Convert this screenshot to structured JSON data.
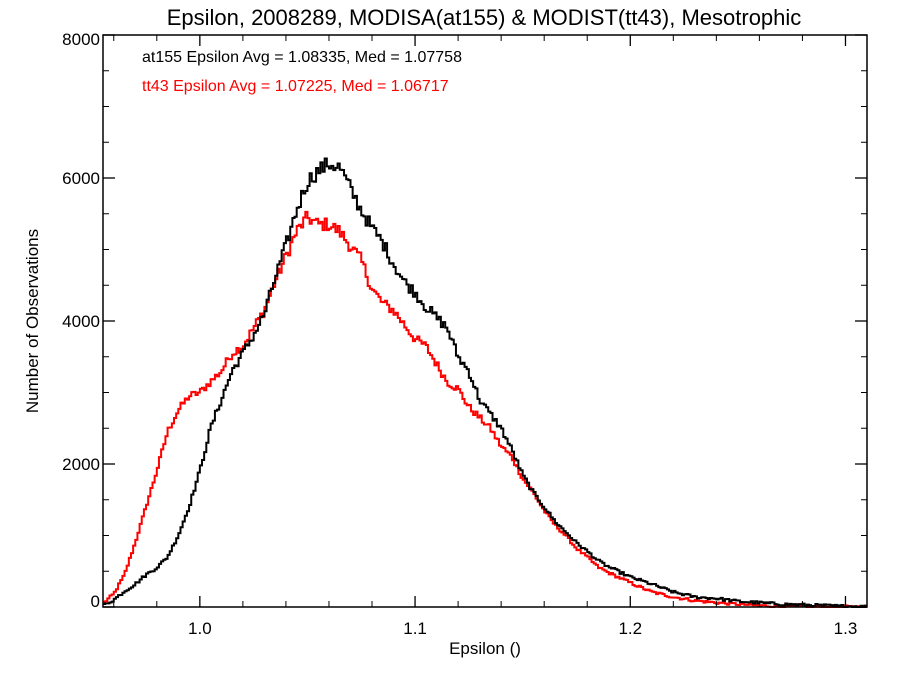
{
  "chart_data": {
    "type": "line",
    "title": "Epsilon, 2008289, MODISA(at155) & MODIST(tt43), Mesotrophic",
    "xlabel": "Epsilon ()",
    "ylabel": "Number of Observations",
    "xlim": [
      0.955,
      1.31
    ],
    "ylim": [
      0,
      8000
    ],
    "x_ticks": [
      1.0,
      1.1,
      1.2,
      1.3
    ],
    "x_tick_labels": [
      "1.0",
      "1.1",
      "1.2",
      "1.3"
    ],
    "y_ticks": [
      0,
      2000,
      4000,
      6000,
      8000
    ],
    "y_tick_labels": [
      "0",
      "2000",
      "4000",
      "6000",
      "8000"
    ],
    "grid": false,
    "series": [
      {
        "name": "at155",
        "color": "#000000",
        "x": [
          0.955,
          0.96,
          0.965,
          0.97,
          0.975,
          0.98,
          0.985,
          0.99,
          0.995,
          1.0,
          1.005,
          1.01,
          1.015,
          1.02,
          1.025,
          1.03,
          1.035,
          1.04,
          1.045,
          1.05,
          1.055,
          1.06,
          1.065,
          1.07,
          1.075,
          1.08,
          1.085,
          1.09,
          1.095,
          1.1,
          1.105,
          1.11,
          1.115,
          1.12,
          1.125,
          1.13,
          1.135,
          1.14,
          1.145,
          1.15,
          1.155,
          1.16,
          1.165,
          1.17,
          1.175,
          1.18,
          1.185,
          1.19,
          1.2,
          1.21,
          1.22,
          1.23,
          1.24,
          1.25,
          1.26,
          1.27,
          1.28,
          1.29,
          1.3,
          1.31
        ],
        "y": [
          20,
          100,
          220,
          320,
          450,
          550,
          700,
          1000,
          1400,
          1900,
          2500,
          2900,
          3300,
          3550,
          3800,
          4100,
          4600,
          5050,
          5550,
          5950,
          6100,
          6200,
          6150,
          5850,
          5550,
          5300,
          5100,
          4800,
          4550,
          4400,
          4200,
          4050,
          3900,
          3500,
          3300,
          2900,
          2700,
          2500,
          2200,
          1850,
          1600,
          1400,
          1200,
          1050,
          900,
          780,
          650,
          560,
          420,
          320,
          210,
          140,
          120,
          80,
          60,
          40,
          30,
          20,
          10,
          5
        ]
      },
      {
        "name": "tt43",
        "color": "#ff0000",
        "x": [
          0.955,
          0.96,
          0.965,
          0.97,
          0.975,
          0.98,
          0.985,
          0.99,
          0.995,
          1.0,
          1.005,
          1.01,
          1.015,
          1.02,
          1.025,
          1.03,
          1.035,
          1.04,
          1.045,
          1.05,
          1.055,
          1.06,
          1.065,
          1.07,
          1.075,
          1.08,
          1.085,
          1.09,
          1.095,
          1.1,
          1.105,
          1.11,
          1.115,
          1.12,
          1.125,
          1.13,
          1.135,
          1.14,
          1.145,
          1.15,
          1.155,
          1.16,
          1.165,
          1.17,
          1.175,
          1.18,
          1.185,
          1.19,
          1.2,
          1.21,
          1.22,
          1.23,
          1.24,
          1.25,
          1.26,
          1.27,
          1.28,
          1.29,
          1.3,
          1.31
        ],
        "y": [
          50,
          180,
          450,
          900,
          1400,
          1900,
          2450,
          2750,
          2950,
          3000,
          3150,
          3300,
          3550,
          3650,
          3900,
          4150,
          4550,
          4900,
          5250,
          5450,
          5350,
          5350,
          5250,
          5050,
          4850,
          4450,
          4250,
          4150,
          3950,
          3750,
          3650,
          3400,
          3150,
          3050,
          2800,
          2650,
          2500,
          2250,
          2100,
          1800,
          1600,
          1350,
          1150,
          1000,
          820,
          700,
          560,
          480,
          340,
          210,
          140,
          90,
          60,
          40,
          20,
          10,
          5,
          3,
          2,
          0
        ]
      }
    ],
    "annotations": [
      {
        "text": "at155 Epsilon Avg = 1.08335, Med = 1.07758",
        "color": "#000000"
      },
      {
        "text": "tt43 Epsilon Avg = 1.07225, Med = 1.06717",
        "color": "#ff0000"
      }
    ]
  }
}
